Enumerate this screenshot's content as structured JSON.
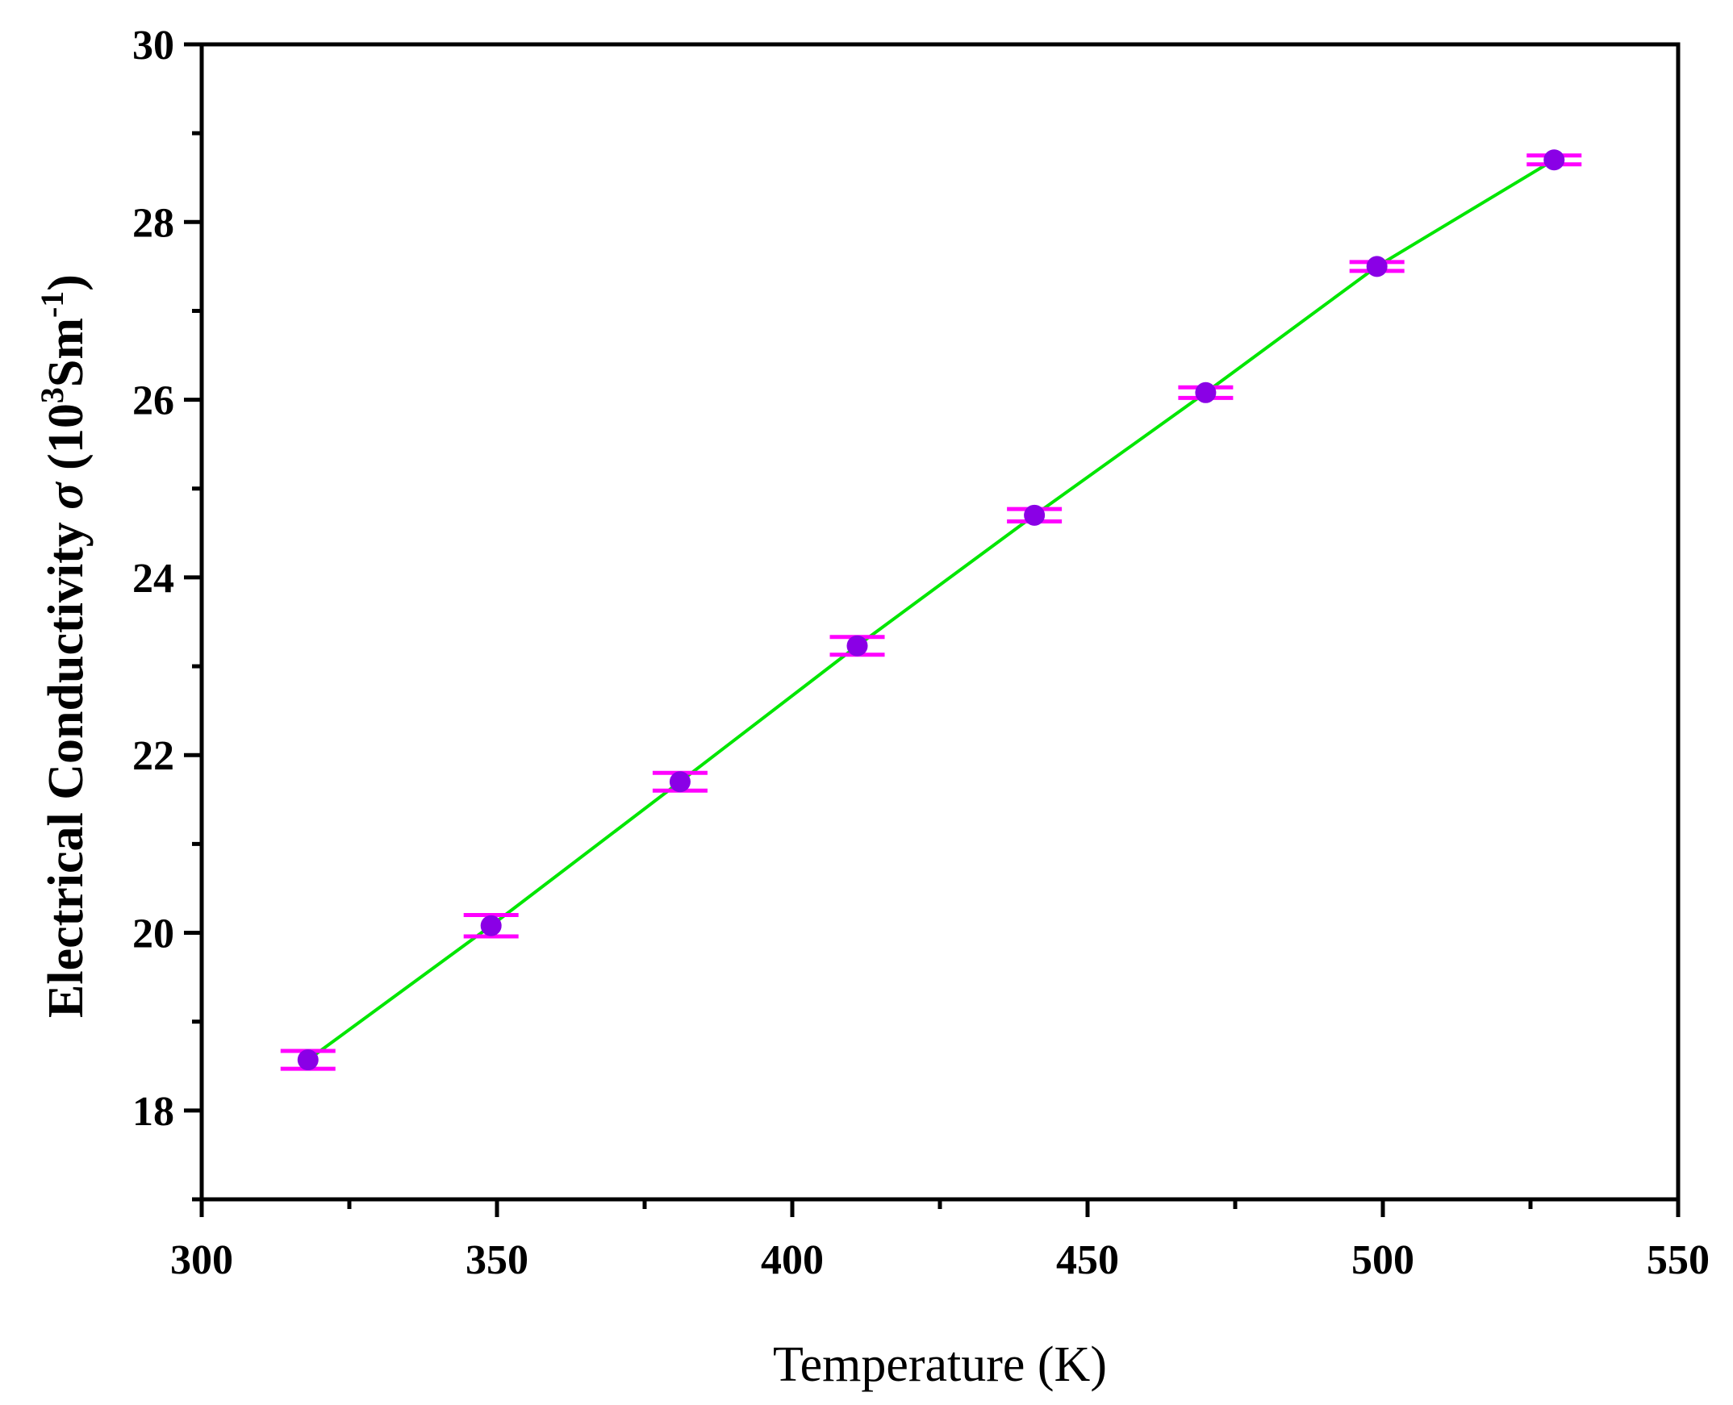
{
  "chart_data": {
    "type": "scatter",
    "title": "",
    "xlabel": "Temperature (K)",
    "ylabel": {
      "prefix": "Electrical Conductivity ",
      "symbol": "σ",
      "open": " (10",
      "sup1": "3",
      "mid": "Sm",
      "sup2": "-1",
      "close": ")"
    },
    "xlim": [
      300,
      550
    ],
    "ylim": [
      17,
      30
    ],
    "x_ticks": [
      300,
      350,
      400,
      450,
      500,
      550
    ],
    "y_ticks": [
      18,
      20,
      22,
      24,
      26,
      28,
      30
    ],
    "x_minor_step": 25,
    "y_minor_step": 1,
    "grid": false,
    "legend": "none",
    "series": [
      {
        "x": [
          318,
          349,
          381,
          411,
          441,
          470,
          499,
          529
        ],
        "y": [
          18.57,
          20.08,
          21.7,
          23.23,
          24.7,
          26.08,
          27.5,
          28.7
        ],
        "error": [
          0.1,
          0.12,
          0.1,
          0.1,
          0.07,
          0.06,
          0.05,
          0.05
        ],
        "marker_color": "#8a00e6",
        "errorbar_color": "#ff00ff",
        "line_color": "#00e600"
      }
    ]
  }
}
